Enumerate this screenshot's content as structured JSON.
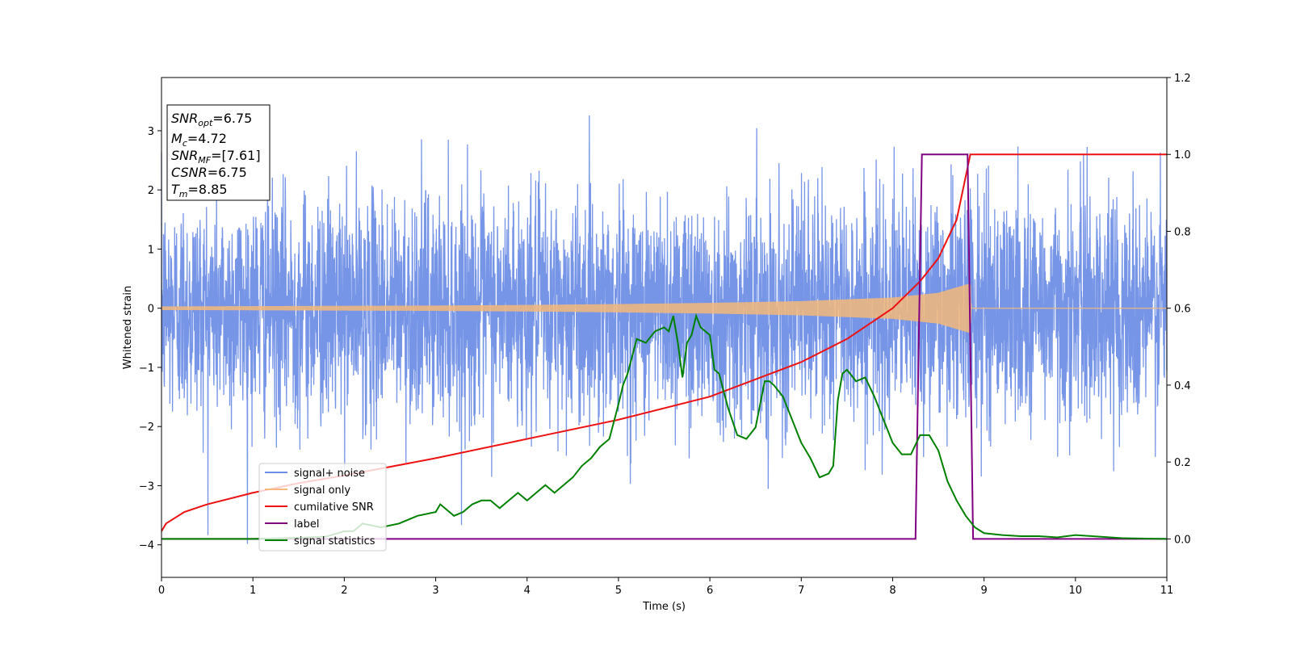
{
  "chart_data": {
    "type": "line",
    "xlabel": "Time (s)",
    "ylabel": "Whitened strain",
    "xlim": [
      0,
      11
    ],
    "ylim": [
      -4.55,
      3.9
    ],
    "y2lim": [
      -0.1,
      1.2
    ],
    "xticks": [
      0,
      1,
      2,
      3,
      4,
      5,
      6,
      7,
      8,
      9,
      10,
      11
    ],
    "yticks": [
      -4,
      -3,
      -2,
      -1,
      0,
      1,
      2,
      3
    ],
    "y2ticks": [
      "0.0",
      "0.2",
      "0.4",
      "0.6",
      "0.8",
      "1.0",
      "1.2"
    ],
    "y2tick_values": [
      0.0,
      0.2,
      0.4,
      0.6,
      0.8,
      1.0,
      1.2
    ],
    "grid": false,
    "legend_position": "lower-left",
    "series": [
      {
        "name": "signal+ noise",
        "color": "#6f8fe6",
        "axis": "left",
        "description_values": {
          "x_range": [
            0,
            11
          ],
          "typical_amplitude": 1.5,
          "max": 3.55,
          "min": -4.15
        }
      },
      {
        "name": "signal only",
        "color": "#f5b87a",
        "axis": "left",
        "envelope": {
          "x": [
            0,
            1,
            2,
            3,
            4,
            5,
            6,
            7,
            8,
            8.5,
            8.85,
            8.86,
            11
          ],
          "amp": [
            0.03,
            0.035,
            0.04,
            0.045,
            0.055,
            0.07,
            0.09,
            0.12,
            0.18,
            0.26,
            0.42,
            0.0,
            0.0
          ]
        }
      },
      {
        "name": "cumilative SNR",
        "color": "#ee1111",
        "axis": "right",
        "x": [
          0,
          0.05,
          0.25,
          0.5,
          1,
          1.5,
          2,
          3,
          4,
          5,
          6,
          7,
          7.5,
          8,
          8.3,
          8.5,
          8.7,
          8.85,
          11
        ],
        "y": [
          0.02,
          0.04,
          0.07,
          0.09,
          0.12,
          0.145,
          0.165,
          0.21,
          0.26,
          0.31,
          0.37,
          0.46,
          0.52,
          0.6,
          0.67,
          0.73,
          0.83,
          1.0,
          1.0
        ]
      },
      {
        "name": "label",
        "color": "#800080",
        "axis": "right",
        "x": [
          0,
          8.25,
          8.32,
          8.82,
          8.88,
          11
        ],
        "y": [
          0,
          0,
          1,
          1,
          0,
          0
        ]
      },
      {
        "name": "signal statistics",
        "color": "#008000",
        "axis": "right",
        "x": [
          0,
          1,
          1.5,
          1.8,
          2,
          2.1,
          2.2,
          2.4,
          2.6,
          2.8,
          3.0,
          3.05,
          3.1,
          3.2,
          3.3,
          3.4,
          3.5,
          3.6,
          3.7,
          3.8,
          3.9,
          4.0,
          4.1,
          4.2,
          4.3,
          4.4,
          4.5,
          4.6,
          4.7,
          4.8,
          4.9,
          5.0,
          5.05,
          5.1,
          5.2,
          5.3,
          5.4,
          5.5,
          5.55,
          5.6,
          5.65,
          5.7,
          5.75,
          5.8,
          5.85,
          5.9,
          5.95,
          6.0,
          6.05,
          6.1,
          6.2,
          6.3,
          6.4,
          6.5,
          6.6,
          6.65,
          6.7,
          6.8,
          6.9,
          7.0,
          7.1,
          7.2,
          7.3,
          7.35,
          7.4,
          7.45,
          7.5,
          7.6,
          7.7,
          7.8,
          7.9,
          8.0,
          8.1,
          8.2,
          8.3,
          8.4,
          8.5,
          8.6,
          8.7,
          8.8,
          8.9,
          9.0,
          9.2,
          9.4,
          9.6,
          9.8,
          10.0,
          10.5,
          11.0
        ],
        "y": [
          0.0,
          0.0,
          0.003,
          0.006,
          0.02,
          0.02,
          0.04,
          0.03,
          0.04,
          0.06,
          0.07,
          0.09,
          0.08,
          0.06,
          0.07,
          0.09,
          0.1,
          0.1,
          0.08,
          0.1,
          0.12,
          0.1,
          0.12,
          0.14,
          0.12,
          0.14,
          0.16,
          0.19,
          0.21,
          0.24,
          0.26,
          0.35,
          0.4,
          0.43,
          0.52,
          0.51,
          0.54,
          0.55,
          0.54,
          0.58,
          0.51,
          0.42,
          0.51,
          0.53,
          0.58,
          0.55,
          0.54,
          0.53,
          0.44,
          0.43,
          0.34,
          0.27,
          0.26,
          0.29,
          0.41,
          0.41,
          0.4,
          0.37,
          0.31,
          0.25,
          0.21,
          0.16,
          0.17,
          0.19,
          0.36,
          0.43,
          0.44,
          0.41,
          0.42,
          0.37,
          0.31,
          0.25,
          0.22,
          0.22,
          0.27,
          0.27,
          0.23,
          0.15,
          0.1,
          0.06,
          0.03,
          0.015,
          0.01,
          0.007,
          0.007,
          0.004,
          0.01,
          0.002,
          0.0
        ]
      }
    ]
  },
  "info_box": {
    "snr_opt_label": "SNR",
    "snr_opt_sub": "opt",
    "snr_opt_value": "=6.75",
    "mc_label": "M",
    "mc_sub": "c",
    "mc_value": "=4.72",
    "snr_mf_label": "SNR",
    "snr_mf_sub": "MF",
    "snr_mf_value": "=[7.61]",
    "csnr_label": "CSNR",
    "csnr_value": "=6.75",
    "tm_label": "T",
    "tm_sub": "m",
    "tm_value": "=8.85"
  },
  "legend": {
    "items": [
      {
        "label": "signal+ noise",
        "color": "#6f8fe6"
      },
      {
        "label": "signal only",
        "color": "#f5b87a"
      },
      {
        "label": "cumilative SNR",
        "color": "#ee1111"
      },
      {
        "label": "label",
        "color": "#800080"
      },
      {
        "label": "signal statistics",
        "color": "#008000"
      }
    ]
  }
}
